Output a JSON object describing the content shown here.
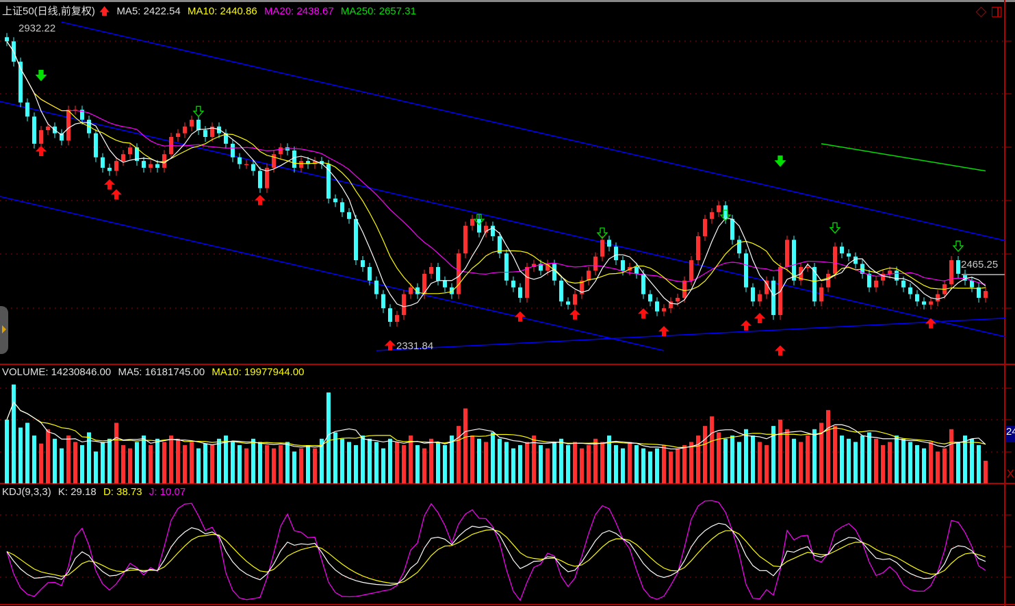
{
  "colors": {
    "up": "#ff3030",
    "down": "#40ffff",
    "ma5": "#ffffff",
    "ma10": "#ffff00",
    "ma20": "#ff00ff",
    "ma250": "#00e000",
    "trend": "#0000ff",
    "grid": "#a00000"
  },
  "header": {
    "title": "上证50(日线,前复权)",
    "arrow_icon": "red-up-arrow",
    "ma5": "MA5: 2422.54",
    "ma10": "MA10: 2440.86",
    "ma20": "MA20: 2438.67",
    "ma250": "MA250: 2657.31"
  },
  "volume_header": {
    "volume": "VOLUME: 14230846.00",
    "ma5": "MA5: 16181745.00",
    "ma10": "MA10: 19977944.00"
  },
  "kdj_header": {
    "name": "KDJ(9,3,3)",
    "k": "K: 29.18",
    "d": "D: 38.73",
    "j": "J: 10.07"
  },
  "labels": {
    "high": "2932.22",
    "low": "2331.84",
    "last_high": "2465.25",
    "axis_box": "24",
    "close_x": "X"
  },
  "chart_data": {
    "type": "candlestick",
    "price_high": 2932.22,
    "price_low": 2331.84,
    "close": [
      2912,
      2873,
      2795,
      2768,
      2716,
      2742,
      2749,
      2736,
      2722,
      2781,
      2781,
      2762,
      2736,
      2690,
      2670,
      2664,
      2683,
      2696,
      2709,
      2683,
      2670,
      2677,
      2670,
      2696,
      2729,
      2736,
      2749,
      2762,
      2742,
      2729,
      2749,
      2736,
      2716,
      2690,
      2677,
      2677,
      2664,
      2631,
      2670,
      2696,
      2709,
      2703,
      2670,
      2683,
      2677,
      2683,
      2677,
      2611,
      2604,
      2585,
      2572,
      2493,
      2480,
      2454,
      2428,
      2401,
      2375,
      2388,
      2428,
      2441,
      2428,
      2467,
      2480,
      2454,
      2441,
      2428,
      2506,
      2559,
      2572,
      2546,
      2559,
      2539,
      2506,
      2454,
      2441,
      2421,
      2480,
      2486,
      2473,
      2486,
      2454,
      2414,
      2408,
      2428,
      2454,
      2473,
      2500,
      2532,
      2519,
      2493,
      2473,
      2480,
      2467,
      2428,
      2414,
      2395,
      2401,
      2414,
      2421,
      2454,
      2493,
      2539,
      2572,
      2585,
      2598,
      2572,
      2532,
      2506,
      2441,
      2414,
      2428,
      2454,
      2388,
      2480,
      2532,
      2454,
      2480,
      2480,
      2414,
      2441,
      2467,
      2519,
      2506,
      2500,
      2486,
      2467,
      2441,
      2454,
      2467,
      2473,
      2454,
      2441,
      2428,
      2414,
      2408,
      2414,
      2428,
      2447,
      2493,
      2467,
      2454,
      2441,
      2421,
      2434
    ],
    "volume_millions": [
      40,
      62,
      35,
      38,
      30,
      25,
      34,
      28,
      22,
      30,
      26,
      24,
      32,
      20,
      26,
      28,
      38,
      24,
      22,
      26,
      30,
      24,
      28,
      26,
      30,
      28,
      24,
      26,
      22,
      25,
      24,
      28,
      30,
      26,
      24,
      22,
      28,
      26,
      24,
      22,
      24,
      26,
      20,
      22,
      24,
      22,
      28,
      57,
      32,
      28,
      26,
      24,
      30,
      28,
      26,
      22,
      28,
      26,
      24,
      30,
      24,
      22,
      28,
      26,
      24,
      30,
      36,
      47,
      30,
      28,
      26,
      32,
      28,
      26,
      22,
      24,
      26,
      30,
      24,
      22,
      26,
      28,
      24,
      26,
      22,
      24,
      28,
      26,
      30,
      24,
      22,
      26,
      24,
      22,
      20,
      22,
      24,
      20,
      22,
      24,
      26,
      30,
      36,
      42,
      32,
      28,
      30,
      26,
      34,
      30,
      26,
      24,
      36,
      40,
      34,
      28,
      26,
      30,
      34,
      38,
      46,
      36,
      30,
      28,
      26,
      30,
      32,
      28,
      24,
      26,
      30,
      28,
      26,
      24,
      22,
      26,
      20,
      22,
      34,
      26,
      30,
      28,
      24,
      14.23
    ],
    "ma250": {
      "from_index": 119,
      "to_index": 143,
      "from": 2716,
      "to": 2664
    },
    "trendlines": [
      {
        "i1": 8,
        "p1": 2949,
        "i2": 146,
        "p2": 2530
      },
      {
        "i1": -1,
        "p1": 2797,
        "i2": 146,
        "p2": 2346
      },
      {
        "i1": -1,
        "p1": 2615,
        "i2": 96,
        "p2": 2320
      },
      {
        "i1": 54,
        "p1": 2320,
        "i2": 146,
        "p2": 2382
      }
    ],
    "signals": [
      {
        "i": 5,
        "p": 2712,
        "type": "buy"
      },
      {
        "i": 15,
        "p": 2648,
        "type": "buy"
      },
      {
        "i": 16,
        "p": 2629,
        "type": "buy"
      },
      {
        "i": 37,
        "p": 2618,
        "type": "buy"
      },
      {
        "i": 56,
        "p": 2340,
        "type": "buy"
      },
      {
        "i": 75,
        "p": 2395,
        "type": "buy"
      },
      {
        "i": 83,
        "p": 2399,
        "type": "buy"
      },
      {
        "i": 93,
        "p": 2401,
        "type": "buy"
      },
      {
        "i": 96,
        "p": 2367,
        "type": "buy"
      },
      {
        "i": 108,
        "p": 2378,
        "type": "buy"
      },
      {
        "i": 110,
        "p": 2392,
        "type": "buy"
      },
      {
        "i": 113,
        "p": 2330,
        "type": "buy"
      },
      {
        "i": 135,
        "p": 2382,
        "type": "buy"
      },
      {
        "i": 5,
        "p": 2837,
        "type": "sell"
      },
      {
        "i": 113,
        "p": 2673,
        "type": "sell"
      },
      {
        "i": 28,
        "p": 2768,
        "type": "sell-outline"
      },
      {
        "i": 69,
        "p": 2561,
        "type": "sell-outline"
      },
      {
        "i": 87,
        "p": 2535,
        "type": "sell-outline"
      },
      {
        "i": 105,
        "p": 2569,
        "type": "sell-outline"
      },
      {
        "i": 121,
        "p": 2545,
        "type": "sell-outline"
      },
      {
        "i": 139,
        "p": 2510,
        "type": "sell-outline"
      }
    ]
  }
}
